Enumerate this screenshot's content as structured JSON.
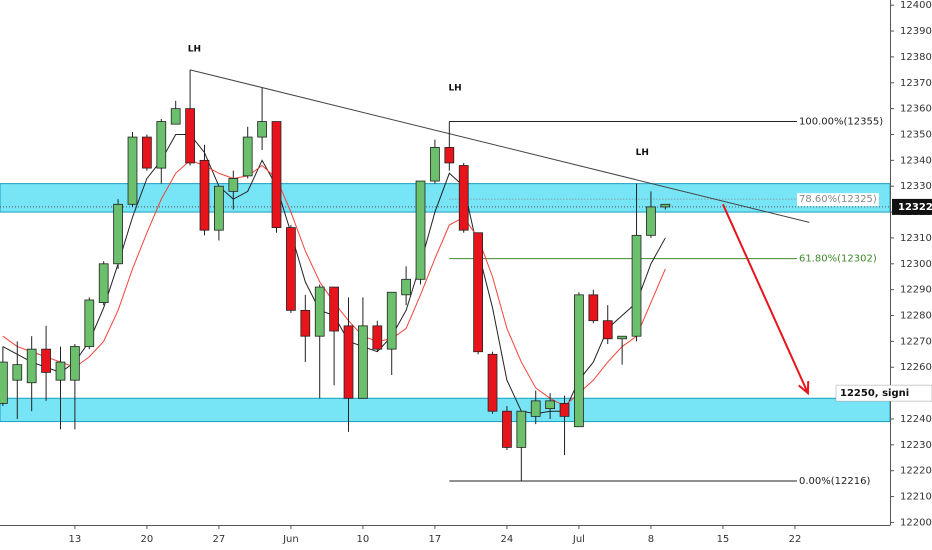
{
  "chart_data": {
    "type": "candlestick",
    "x": [
      0,
      1,
      2,
      3,
      4,
      5,
      6,
      7,
      8,
      9,
      10,
      11,
      12,
      13,
      14,
      15,
      16,
      17,
      18,
      19,
      20,
      21,
      22,
      23,
      24,
      25,
      26,
      27,
      28,
      29,
      30,
      31,
      32,
      33,
      34,
      35,
      36,
      37,
      38,
      39,
      40,
      41,
      42,
      43,
      44,
      45,
      46
    ],
    "open": [
      12246,
      12255,
      12254,
      12267,
      12255,
      12255,
      12268,
      12285,
      12300,
      12323,
      12349,
      12337,
      12354,
      12360,
      12340,
      12313,
      12328,
      12334,
      12349,
      12355,
      12314,
      12282,
      12272,
      12291,
      12276,
      12248,
      12276,
      12267,
      12288,
      12294,
      12332,
      12345,
      12338,
      12312,
      12265,
      12243,
      12229,
      12241,
      12244,
      12246,
      12237,
      12288,
      12278,
      12271,
      12272,
      12311,
      12322
    ],
    "high": [
      12268,
      12270,
      12272,
      12276,
      12268,
      12269,
      12287,
      12301,
      12325,
      12351,
      12350,
      12356,
      12363,
      12375,
      12346,
      12330,
      12336,
      12353,
      12368,
      12355,
      12315,
      12288,
      12292,
      12291,
      12287,
      12287,
      12278,
      12289,
      12299,
      12332,
      12348,
      12355,
      12339,
      12312,
      12266,
      12245,
      12243,
      12251,
      12250,
      12249,
      12289,
      12290,
      12284,
      12272,
      12331,
      12328,
      12323
    ],
    "low": [
      12245,
      12240,
      12243,
      12247,
      12236,
      12236,
      12267,
      12284,
      12298,
      12322,
      12336,
      12331,
      12354,
      12338,
      12311,
      12309,
      12321,
      12333,
      12344,
      12312,
      12281,
      12262,
      12248,
      12253,
      12235,
      12248,
      12266,
      12257,
      12284,
      12292,
      12331,
      12336,
      12312,
      12265,
      12242,
      12228,
      12216,
      12238,
      12240,
      12226,
      12237,
      12277,
      12269,
      12261,
      12270,
      12310,
      12321
    ],
    "close": [
      12262,
      12261,
      12267,
      12258,
      12262,
      12268,
      12286,
      12300,
      12323,
      12349,
      12337,
      12355,
      12360,
      12339,
      12313,
      12330,
      12333,
      12349,
      12355,
      12314,
      12282,
      12272,
      12291,
      12274,
      12248,
      12276,
      12267,
      12289,
      12294,
      12332,
      12345,
      12339,
      12313,
      12266,
      12243,
      12229,
      12243,
      12247,
      12247,
      12241,
      12288,
      12278,
      12271,
      12272,
      12311,
      12322,
      12323
    ],
    "up_color": "#6cbf6c",
    "down_color": "#e8141c",
    "series": [
      {
        "color": "#222222",
        "values": [
          12268,
          12265,
          12262,
          12260,
          12258,
          12262,
          12270,
          12283,
          12300,
          12318,
          12333,
          12340,
          12350,
          12350,
          12343,
          12330,
          12325,
          12328,
          12340,
          12330,
          12312,
          12293,
          12282,
          12280,
          12270,
          12268,
          12266,
          12272,
          12282,
          12300,
          12320,
          12335,
          12330,
          12305,
          12283,
          12255,
          12243,
          12242,
          12243,
          12243,
          12255,
          12262,
          12275,
          12280,
          12285,
          12300,
          12310
        ]
      },
      {
        "color": "#f0443c",
        "values": [
          12272,
          12268,
          12266,
          12264,
          12262,
          12260,
          12264,
          12270,
          12282,
          12298,
          12312,
          12325,
          12335,
          12340,
          12338,
          12335,
          12333,
          12334,
          12338,
          12333,
          12320,
          12305,
          12293,
          12285,
          12278,
          12272,
          12270,
          12271,
          12275,
          12288,
          12302,
          12315,
          12318,
          12310,
          12295,
          12275,
          12262,
          12252,
          12248,
          12245,
          12250,
          12255,
          12262,
          12268,
          12272,
          12285,
          12298
        ]
      }
    ],
    "xlim": [
      -0.2,
      61.6
    ],
    "xticks": [
      {
        "value": 5,
        "label": "13"
      },
      {
        "value": 10,
        "label": "20"
      },
      {
        "value": 15,
        "label": "27"
      },
      {
        "value": 20,
        "label": "Jun"
      },
      {
        "value": 25,
        "label": "10"
      },
      {
        "value": 30,
        "label": "17"
      },
      {
        "value": 35,
        "label": "24"
      },
      {
        "value": 40,
        "label": "Jul"
      },
      {
        "value": 45,
        "label": "8"
      },
      {
        "value": 50,
        "label": "15"
      },
      {
        "value": 55,
        "label": "22"
      }
    ],
    "ylim": [
      12199,
      12402
    ],
    "yticks": [
      12200,
      12210,
      12220,
      12230,
      12240,
      12250,
      12260,
      12270,
      12280,
      12290,
      12300,
      12310,
      12320,
      12330,
      12340,
      12350,
      12360,
      12370,
      12380,
      12390,
      12400
    ],
    "zones": [
      {
        "from": 12320,
        "to": 12331,
        "color": "#5fe0f4"
      },
      {
        "from": 12239,
        "to": 12248,
        "color": "#5fe0f4",
        "label": "12250, signi",
        "label_value": 12250
      }
    ],
    "last_price": 12322,
    "trend_line": {
      "x": [
        13,
        56
      ],
      "y": [
        12375,
        12316
      ],
      "color": "#444444"
    },
    "arrow": {
      "x": [
        50,
        55.9
      ],
      "y": [
        12323,
        12250
      ],
      "color": "#e8141c"
    },
    "fib_levels": [
      {
        "label": "100.00%(12355)",
        "value": 12355,
        "x": [
          31,
          61
        ],
        "color": "#222222"
      },
      {
        "label": "78.60%(12325)",
        "value": 12325,
        "x": [
          31,
          61
        ],
        "color": "#888888"
      },
      {
        "label": "61.80%(12302)",
        "value": 12302,
        "x": [
          31,
          59
        ],
        "color": "#3d8a2a"
      },
      {
        "label": "0.00%(12216)",
        "value": 12216,
        "x": [
          31,
          59
        ],
        "color": "#222222"
      }
    ],
    "annotations": [
      {
        "text": "LH",
        "x": 13.3,
        "y": 12383
      },
      {
        "text": "LH",
        "x": 31.4,
        "y": 12368
      },
      {
        "text": "LH",
        "x": 44.4,
        "y": 12343
      }
    ]
  }
}
